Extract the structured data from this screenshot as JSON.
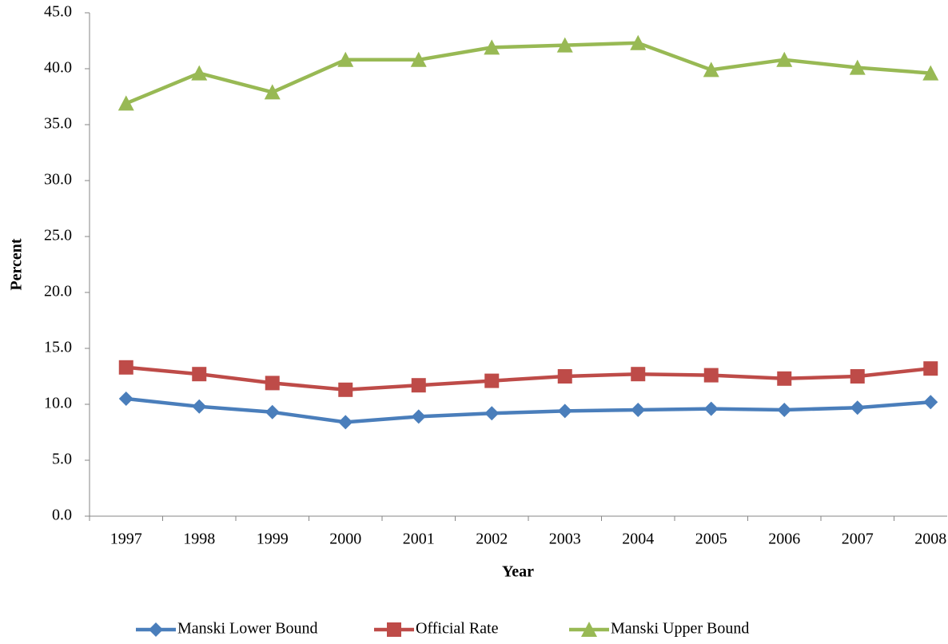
{
  "chart_data": {
    "type": "line",
    "x_label": "Year",
    "y_label": "Percent",
    "categories": [
      "1997",
      "1998",
      "1999",
      "2000",
      "2001",
      "2002",
      "2003",
      "2004",
      "2005",
      "2006",
      "2007",
      "2008"
    ],
    "series": [
      {
        "name": "Manski Lower Bound",
        "color": "#4a7ebb",
        "marker": "diamond",
        "values": [
          10.5,
          9.8,
          9.3,
          8.4,
          8.9,
          9.2,
          9.4,
          9.5,
          9.6,
          9.5,
          9.7,
          10.2
        ]
      },
      {
        "name": "Official Rate",
        "color": "#be4b48",
        "marker": "square",
        "values": [
          13.3,
          12.7,
          11.9,
          11.3,
          11.7,
          12.1,
          12.5,
          12.7,
          12.6,
          12.3,
          12.5,
          13.2
        ]
      },
      {
        "name": "Manski Upper Bound",
        "color": "#98b954",
        "marker": "triangle",
        "values": [
          36.9,
          39.6,
          37.9,
          40.8,
          40.8,
          41.9,
          42.1,
          42.3,
          39.9,
          40.8,
          40.1,
          39.6
        ]
      }
    ],
    "ylim": [
      0,
      45
    ],
    "yticks": [
      {
        "value": 0,
        "label": "0.0"
      },
      {
        "value": 5,
        "label": "5.0"
      },
      {
        "value": 10,
        "label": "10.0"
      },
      {
        "value": 15,
        "label": "15.0"
      },
      {
        "value": 20,
        "label": "20.0"
      },
      {
        "value": 25,
        "label": "25.0"
      },
      {
        "value": 30,
        "label": "30.0"
      },
      {
        "value": 35,
        "label": "35.0"
      },
      {
        "value": 40,
        "label": "40.0"
      },
      {
        "value": 45,
        "label": "45.0"
      }
    ],
    "legend": "bottom"
  }
}
